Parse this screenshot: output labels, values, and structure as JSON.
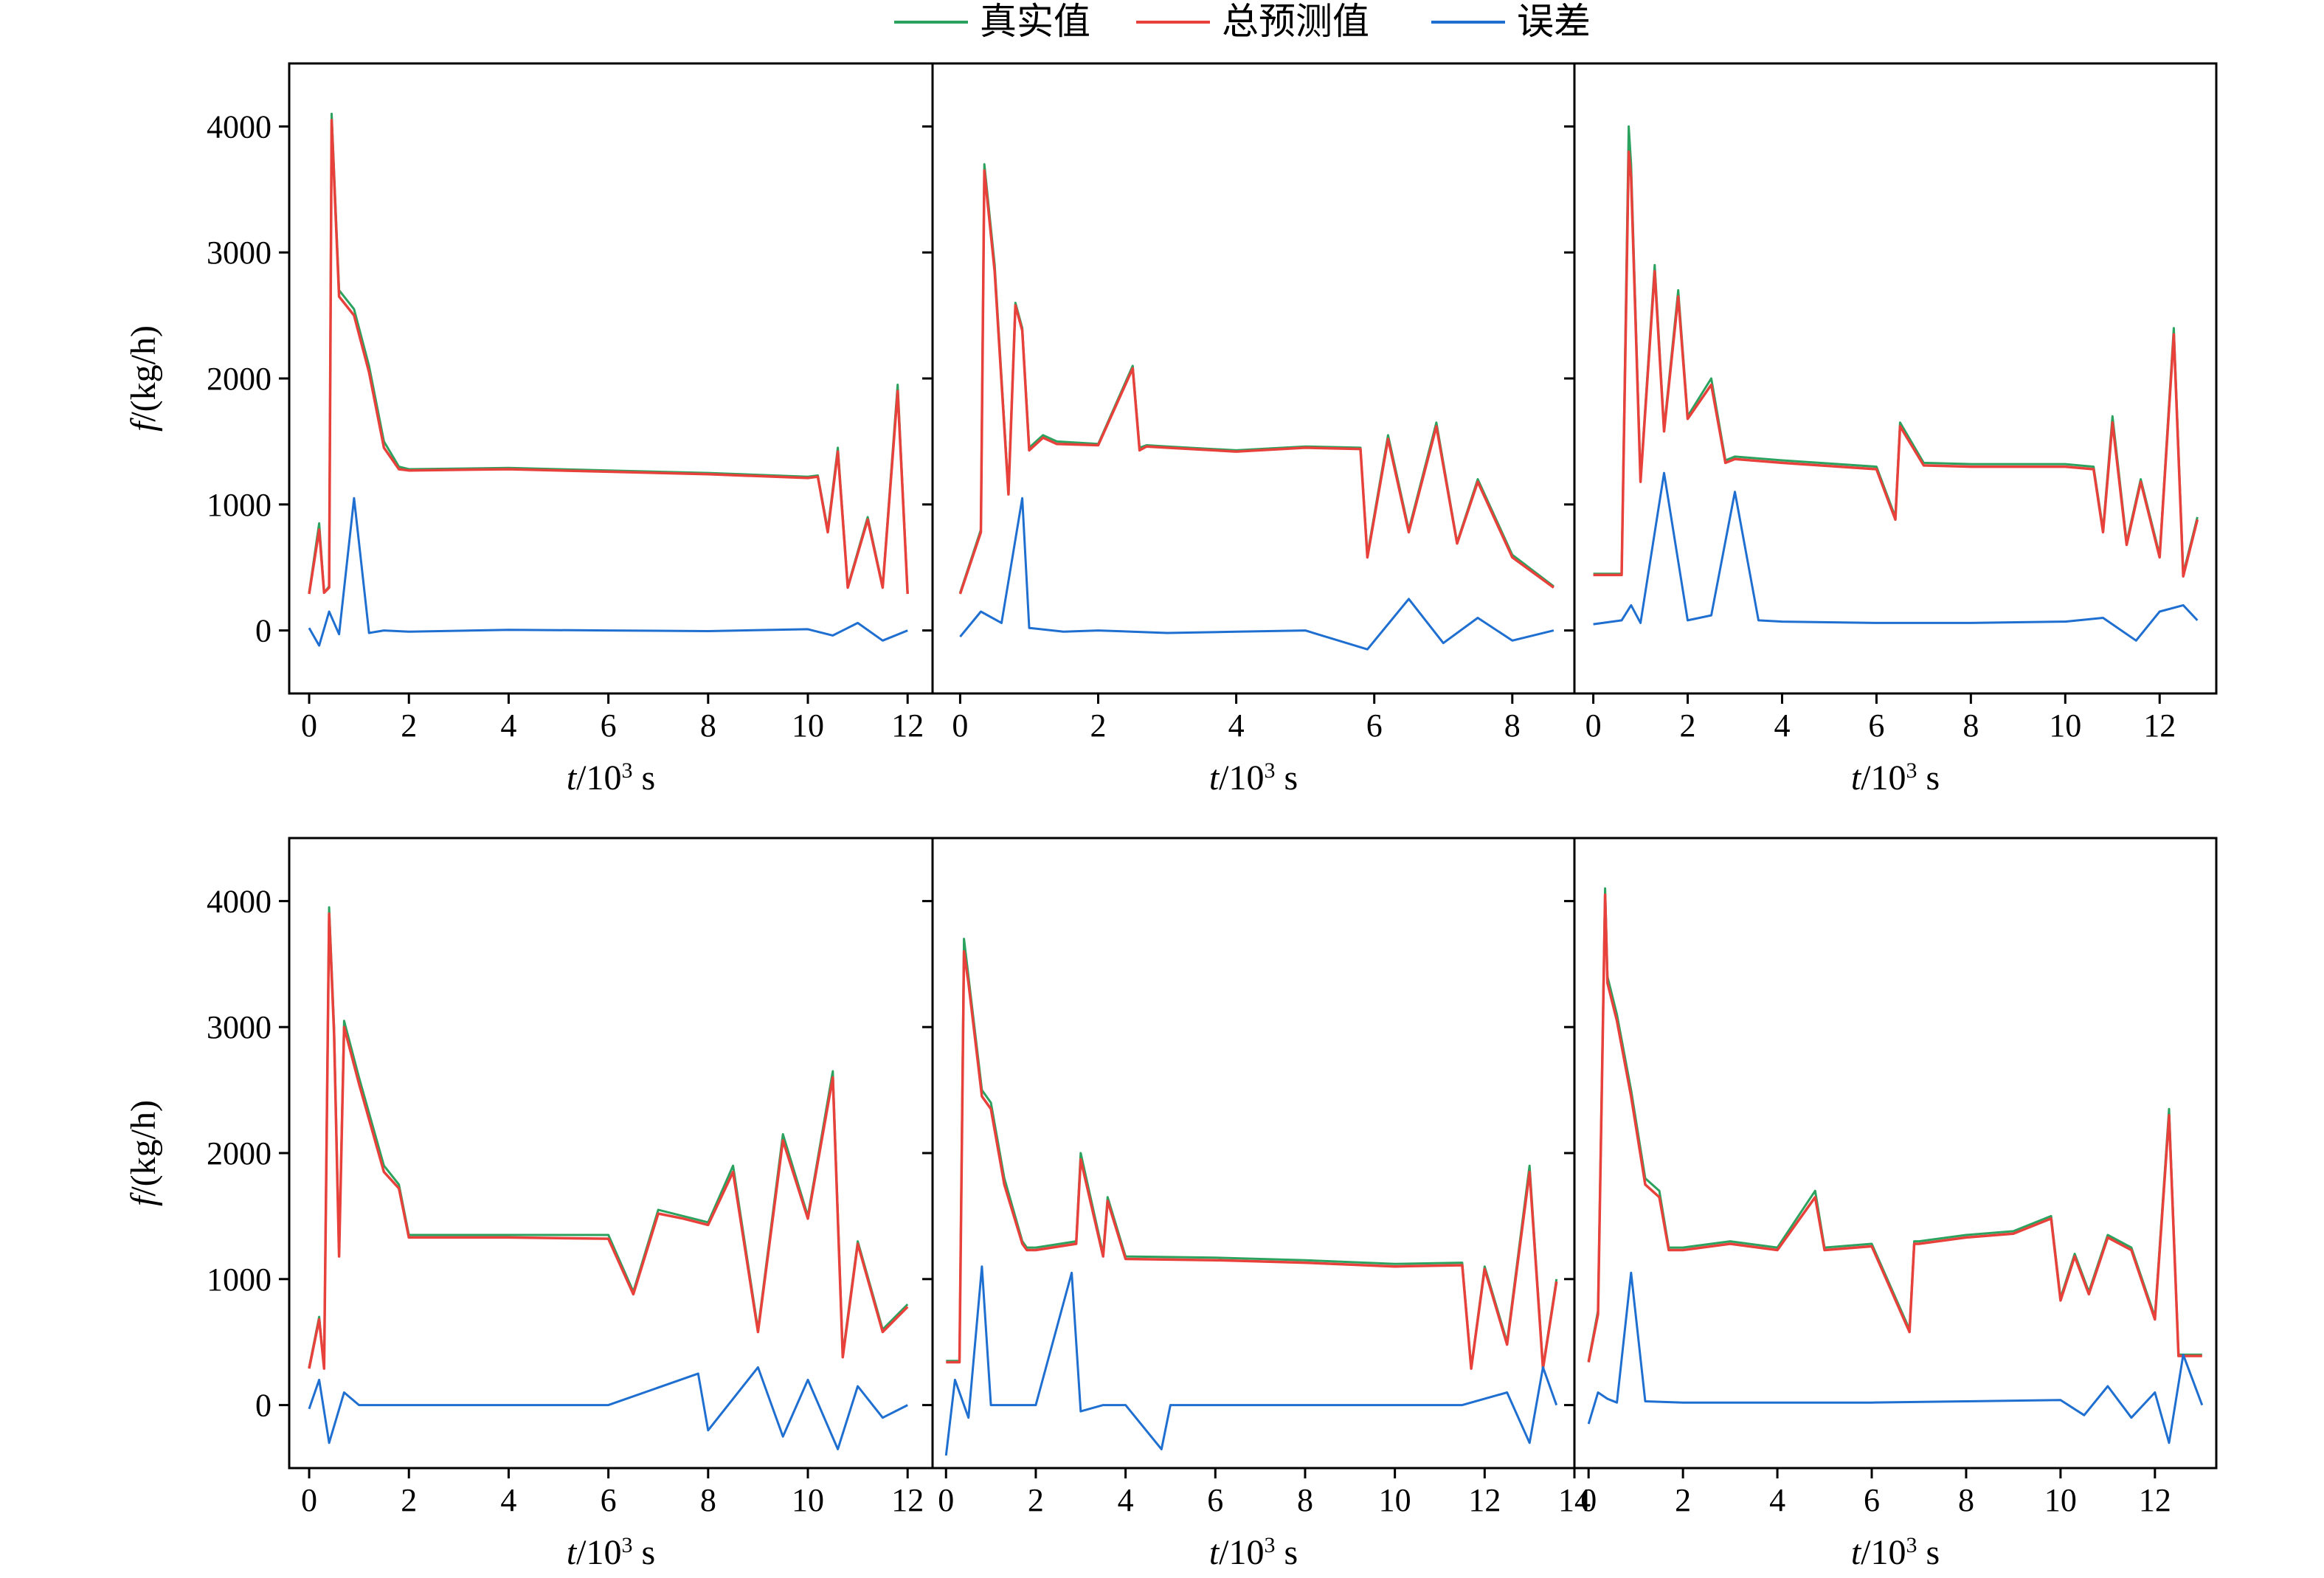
{
  "legend": [
    {
      "label": "真实值",
      "color": "#2ca25f"
    },
    {
      "label": "总预测值",
      "color": "#e8403a"
    },
    {
      "label": "误差",
      "color": "#1f6fd1"
    }
  ],
  "axis_text": {
    "y_label": "f/(kg/h)",
    "x_label_var": "t",
    "x_label_unit": "/10",
    "x_label_exp": "3",
    "x_label_s": " s"
  },
  "chart_data": [
    {
      "type": "line",
      "xlim": [
        -0.4,
        12.5
      ],
      "ylim": [
        -500,
        4500
      ],
      "xticks": [
        0,
        2,
        4,
        6,
        8,
        10,
        12
      ],
      "yticks": [
        0,
        1000,
        2000,
        3000,
        4000
      ],
      "series": [
        {
          "name": "真实值",
          "x": [
            0,
            0.2,
            0.3,
            0.4,
            0.45,
            0.6,
            0.9,
            1.2,
            1.5,
            1.8,
            2,
            4,
            6,
            8,
            10,
            10.2,
            10.4,
            10.6,
            10.8,
            11.2,
            11.5,
            11.8,
            12.0
          ],
          "y": [
            300,
            850,
            300,
            350,
            4100,
            2700,
            2550,
            2100,
            1500,
            1300,
            1280,
            1290,
            1270,
            1250,
            1220,
            1230,
            800,
            1450,
            350,
            900,
            350,
            1950,
            300
          ]
        },
        {
          "name": "总预测值",
          "x": [
            0,
            0.2,
            0.3,
            0.4,
            0.45,
            0.6,
            0.9,
            1.2,
            1.5,
            1.8,
            2,
            4,
            6,
            8,
            10,
            10.2,
            10.4,
            10.6,
            10.8,
            11.2,
            11.5,
            11.8,
            12.0
          ],
          "y": [
            290,
            800,
            300,
            340,
            4050,
            2650,
            2500,
            2050,
            1450,
            1280,
            1270,
            1280,
            1260,
            1240,
            1210,
            1220,
            780,
            1420,
            340,
            880,
            340,
            1900,
            290
          ]
        },
        {
          "name": "误差",
          "x": [
            0,
            0.2,
            0.4,
            0.6,
            0.9,
            1.2,
            1.5,
            2,
            4,
            6,
            8,
            10,
            10.5,
            11,
            11.5,
            12.0
          ],
          "y": [
            20,
            -120,
            150,
            -30,
            1050,
            -20,
            0,
            -10,
            5,
            0,
            -5,
            10,
            -40,
            60,
            -80,
            0
          ]
        }
      ]
    },
    {
      "type": "line",
      "xlim": [
        -0.4,
        8.9
      ],
      "ylim": [
        -500,
        4500
      ],
      "xticks": [
        0,
        2,
        4,
        6,
        8
      ],
      "yticks": [
        0,
        1000,
        2000,
        3000,
        4000
      ],
      "series": [
        {
          "name": "真实值",
          "x": [
            0,
            0.3,
            0.35,
            0.5,
            0.7,
            0.8,
            0.9,
            1.0,
            1.2,
            1.4,
            2.0,
            2.5,
            2.6,
            2.7,
            3.0,
            4.0,
            5.0,
            5.8,
            5.9,
            6.2,
            6.5,
            6.9,
            7.2,
            7.5,
            8.0,
            8.6
          ],
          "y": [
            300,
            800,
            3700,
            2900,
            1100,
            2600,
            2400,
            1450,
            1550,
            1500,
            1480,
            2100,
            1450,
            1470,
            1460,
            1430,
            1460,
            1450,
            600,
            1550,
            800,
            1650,
            700,
            1200,
            600,
            350
          ]
        },
        {
          "name": "总预测值",
          "x": [
            0,
            0.3,
            0.35,
            0.5,
            0.7,
            0.8,
            0.9,
            1.0,
            1.2,
            1.4,
            2.0,
            2.5,
            2.6,
            2.7,
            3.0,
            4.0,
            5.0,
            5.8,
            5.9,
            6.2,
            6.5,
            6.9,
            7.2,
            7.5,
            8.0,
            8.6
          ],
          "y": [
            290,
            780,
            3650,
            2850,
            1080,
            2580,
            2380,
            1430,
            1530,
            1480,
            1470,
            2080,
            1430,
            1460,
            1450,
            1420,
            1450,
            1440,
            580,
            1520,
            780,
            1620,
            690,
            1180,
            580,
            340
          ]
        },
        {
          "name": "误差",
          "x": [
            0,
            0.3,
            0.6,
            0.9,
            1.0,
            1.5,
            2.0,
            3.0,
            4.0,
            5.0,
            5.9,
            6.5,
            7.0,
            7.5,
            8.0,
            8.6
          ],
          "y": [
            -50,
            150,
            60,
            1050,
            20,
            -10,
            0,
            -20,
            -10,
            0,
            -150,
            250,
            -100,
            100,
            -80,
            0
          ]
        }
      ]
    },
    {
      "type": "line",
      "xlim": [
        -0.4,
        13.2
      ],
      "ylim": [
        -500,
        4500
      ],
      "xticks": [
        0,
        2,
        4,
        6,
        8,
        10,
        12
      ],
      "yticks": [
        0,
        1000,
        2000,
        3000,
        4000
      ],
      "series": [
        {
          "name": "真实值",
          "x": [
            0,
            0.6,
            0.75,
            0.8,
            1.0,
            1.3,
            1.5,
            1.8,
            2.0,
            2.5,
            2.8,
            3.0,
            4.0,
            6.0,
            6.4,
            6.5,
            7.0,
            8.0,
            10.0,
            10.6,
            10.8,
            11.0,
            11.3,
            11.6,
            12.0,
            12.3,
            12.5,
            12.8
          ],
          "y": [
            450,
            450,
            4000,
            3700,
            1200,
            2900,
            1600,
            2700,
            1700,
            2000,
            1350,
            1380,
            1350,
            1300,
            900,
            1650,
            1330,
            1320,
            1320,
            1300,
            800,
            1700,
            700,
            1200,
            600,
            2400,
            450,
            900
          ]
        },
        {
          "name": "总预测值",
          "x": [
            0,
            0.6,
            0.75,
            0.8,
            1.0,
            1.3,
            1.5,
            1.8,
            2.0,
            2.5,
            2.8,
            3.0,
            4.0,
            6.0,
            6.4,
            6.5,
            7.0,
            8.0,
            10.0,
            10.6,
            10.8,
            11.0,
            11.3,
            11.6,
            12.0,
            12.3,
            12.5,
            12.8
          ],
          "y": [
            440,
            440,
            3800,
            3600,
            1180,
            2850,
            1580,
            2650,
            1680,
            1950,
            1330,
            1360,
            1330,
            1280,
            880,
            1620,
            1310,
            1300,
            1300,
            1280,
            780,
            1650,
            680,
            1180,
            580,
            2350,
            430,
            880
          ]
        },
        {
          "name": "误差",
          "x": [
            0,
            0.6,
            0.8,
            1.0,
            1.5,
            2.0,
            2.5,
            3.0,
            3.5,
            4.0,
            6.0,
            8.0,
            10.0,
            10.8,
            11.5,
            12.0,
            12.5,
            12.8
          ],
          "y": [
            50,
            80,
            200,
            60,
            1250,
            80,
            120,
            1100,
            80,
            70,
            60,
            60,
            70,
            100,
            -80,
            150,
            200,
            80
          ]
        }
      ]
    },
    {
      "type": "line",
      "xlim": [
        -0.4,
        12.5
      ],
      "ylim": [
        -500,
        4500
      ],
      "xticks": [
        0,
        2,
        4,
        6,
        8,
        10,
        12
      ],
      "yticks": [
        0,
        1000,
        2000,
        3000,
        4000
      ],
      "series": [
        {
          "name": "真实值",
          "x": [
            0,
            0.2,
            0.3,
            0.4,
            0.5,
            0.6,
            0.7,
            1.0,
            1.5,
            1.8,
            2.0,
            4.0,
            6.0,
            6.5,
            7.0,
            7.5,
            8.0,
            8.5,
            9.0,
            9.5,
            10.0,
            10.5,
            10.7,
            11.0,
            11.5,
            12.0
          ],
          "y": [
            300,
            700,
            300,
            3950,
            3000,
            1200,
            3050,
            2600,
            1900,
            1750,
            1350,
            1350,
            1350,
            900,
            1550,
            1500,
            1450,
            1900,
            600,
            2150,
            1500,
            2650,
            400,
            1300,
            600,
            800
          ]
        },
        {
          "name": "总预测值",
          "x": [
            0,
            0.2,
            0.3,
            0.4,
            0.5,
            0.6,
            0.7,
            1.0,
            1.5,
            1.8,
            2.0,
            4.0,
            6.0,
            6.5,
            7.0,
            7.5,
            8.0,
            8.5,
            9.0,
            9.5,
            10.0,
            10.5,
            10.7,
            11.0,
            11.5,
            12.0
          ],
          "y": [
            290,
            680,
            290,
            3900,
            2950,
            1180,
            3000,
            2550,
            1850,
            1720,
            1330,
            1330,
            1320,
            880,
            1520,
            1480,
            1430,
            1850,
            580,
            2100,
            1480,
            2600,
            380,
            1280,
            580,
            780
          ]
        },
        {
          "name": "误差",
          "x": [
            0,
            0.2,
            0.4,
            0.7,
            1.0,
            2.0,
            4.0,
            6.0,
            7.8,
            8.0,
            9.0,
            9.5,
            10.0,
            10.6,
            11.0,
            11.5,
            12.0
          ],
          "y": [
            -30,
            200,
            -300,
            100,
            0,
            0,
            0,
            0,
            250,
            -200,
            300,
            -250,
            200,
            -350,
            150,
            -100,
            0
          ]
        }
      ]
    },
    {
      "type": "line",
      "xlim": [
        -0.3,
        14.0
      ],
      "ylim": [
        -500,
        4500
      ],
      "xticks": [
        0,
        2,
        4,
        6,
        8,
        10,
        12,
        14
      ],
      "yticks": [
        0,
        1000,
        2000,
        3000,
        4000
      ],
      "series": [
        {
          "name": "真实值",
          "x": [
            0,
            0.3,
            0.4,
            0.5,
            0.8,
            1.0,
            1.3,
            1.7,
            1.8,
            2.0,
            2.9,
            3.0,
            3.5,
            3.6,
            4.0,
            6.0,
            8.0,
            10.0,
            11.5,
            11.7,
            12.0,
            12.5,
            13.0,
            13.3,
            13.6
          ],
          "y": [
            350,
            350,
            3700,
            3400,
            2500,
            2400,
            1800,
            1300,
            1250,
            1250,
            1300,
            2000,
            1200,
            1650,
            1180,
            1170,
            1150,
            1120,
            1130,
            300,
            1100,
            500,
            1900,
            300,
            1000
          ]
        },
        {
          "name": "总预测值",
          "x": [
            0,
            0.3,
            0.4,
            0.5,
            0.8,
            1.0,
            1.3,
            1.7,
            1.8,
            2.0,
            2.9,
            3.0,
            3.5,
            3.6,
            4.0,
            6.0,
            8.0,
            10.0,
            11.5,
            11.7,
            12.0,
            12.5,
            13.0,
            13.3,
            13.6
          ],
          "y": [
            340,
            340,
            3600,
            3350,
            2450,
            2350,
            1750,
            1280,
            1230,
            1230,
            1280,
            1950,
            1180,
            1620,
            1160,
            1150,
            1130,
            1100,
            1110,
            290,
            1080,
            480,
            1850,
            290,
            980
          ]
        },
        {
          "name": "误差",
          "x": [
            0,
            0.2,
            0.5,
            0.8,
            1.0,
            2.0,
            2.8,
            3.0,
            3.5,
            4.0,
            4.8,
            5.0,
            8.0,
            11.5,
            12.5,
            13.0,
            13.3,
            13.6
          ],
          "y": [
            -400,
            200,
            -100,
            1100,
            0,
            0,
            1050,
            -50,
            0,
            0,
            -350,
            0,
            0,
            0,
            100,
            -300,
            300,
            0
          ]
        }
      ]
    },
    {
      "type": "line",
      "xlim": [
        -0.3,
        13.3
      ],
      "ylim": [
        -500,
        4500
      ],
      "xticks": [
        0,
        2,
        4,
        6,
        8,
        10,
        12
      ],
      "yticks": [
        0,
        1000,
        2000,
        3000,
        4000
      ],
      "series": [
        {
          "name": "真实值",
          "x": [
            0,
            0.2,
            0.35,
            0.4,
            0.6,
            0.9,
            1.2,
            1.5,
            1.7,
            2.0,
            3.0,
            4.0,
            4.8,
            5.0,
            6.0,
            6.8,
            6.9,
            7.0,
            8.0,
            9.0,
            9.8,
            10.0,
            10.3,
            10.6,
            11.0,
            11.5,
            12.0,
            12.3,
            12.5,
            13.0
          ],
          "y": [
            350,
            750,
            4100,
            3400,
            3100,
            2500,
            1800,
            1700,
            1250,
            1250,
            1300,
            1250,
            1700,
            1250,
            1280,
            600,
            1300,
            1300,
            1350,
            1380,
            1500,
            850,
            1200,
            900,
            1350,
            1250,
            700,
            2350,
            400,
            400
          ]
        },
        {
          "name": "总预测值",
          "x": [
            0,
            0.2,
            0.35,
            0.4,
            0.6,
            0.9,
            1.2,
            1.5,
            1.7,
            2.0,
            3.0,
            4.0,
            4.8,
            5.0,
            6.0,
            6.8,
            6.9,
            7.0,
            8.0,
            9.0,
            9.8,
            10.0,
            10.3,
            10.6,
            11.0,
            11.5,
            12.0,
            12.3,
            12.5,
            13.0
          ],
          "y": [
            340,
            720,
            4050,
            3350,
            3050,
            2450,
            1750,
            1650,
            1230,
            1230,
            1280,
            1230,
            1650,
            1230,
            1260,
            580,
            1280,
            1280,
            1330,
            1360,
            1480,
            830,
            1180,
            880,
            1330,
            1230,
            680,
            2300,
            390,
            390
          ]
        },
        {
          "name": "误差",
          "x": [
            0,
            0.2,
            0.4,
            0.6,
            0.9,
            1.2,
            2.0,
            4.0,
            6.0,
            8.0,
            10.0,
            10.5,
            11.0,
            11.5,
            12.0,
            12.3,
            12.6,
            13.0
          ],
          "y": [
            -150,
            100,
            50,
            20,
            1050,
            30,
            20,
            20,
            20,
            30,
            40,
            -80,
            150,
            -100,
            100,
            -300,
            400,
            0
          ]
        }
      ]
    }
  ]
}
